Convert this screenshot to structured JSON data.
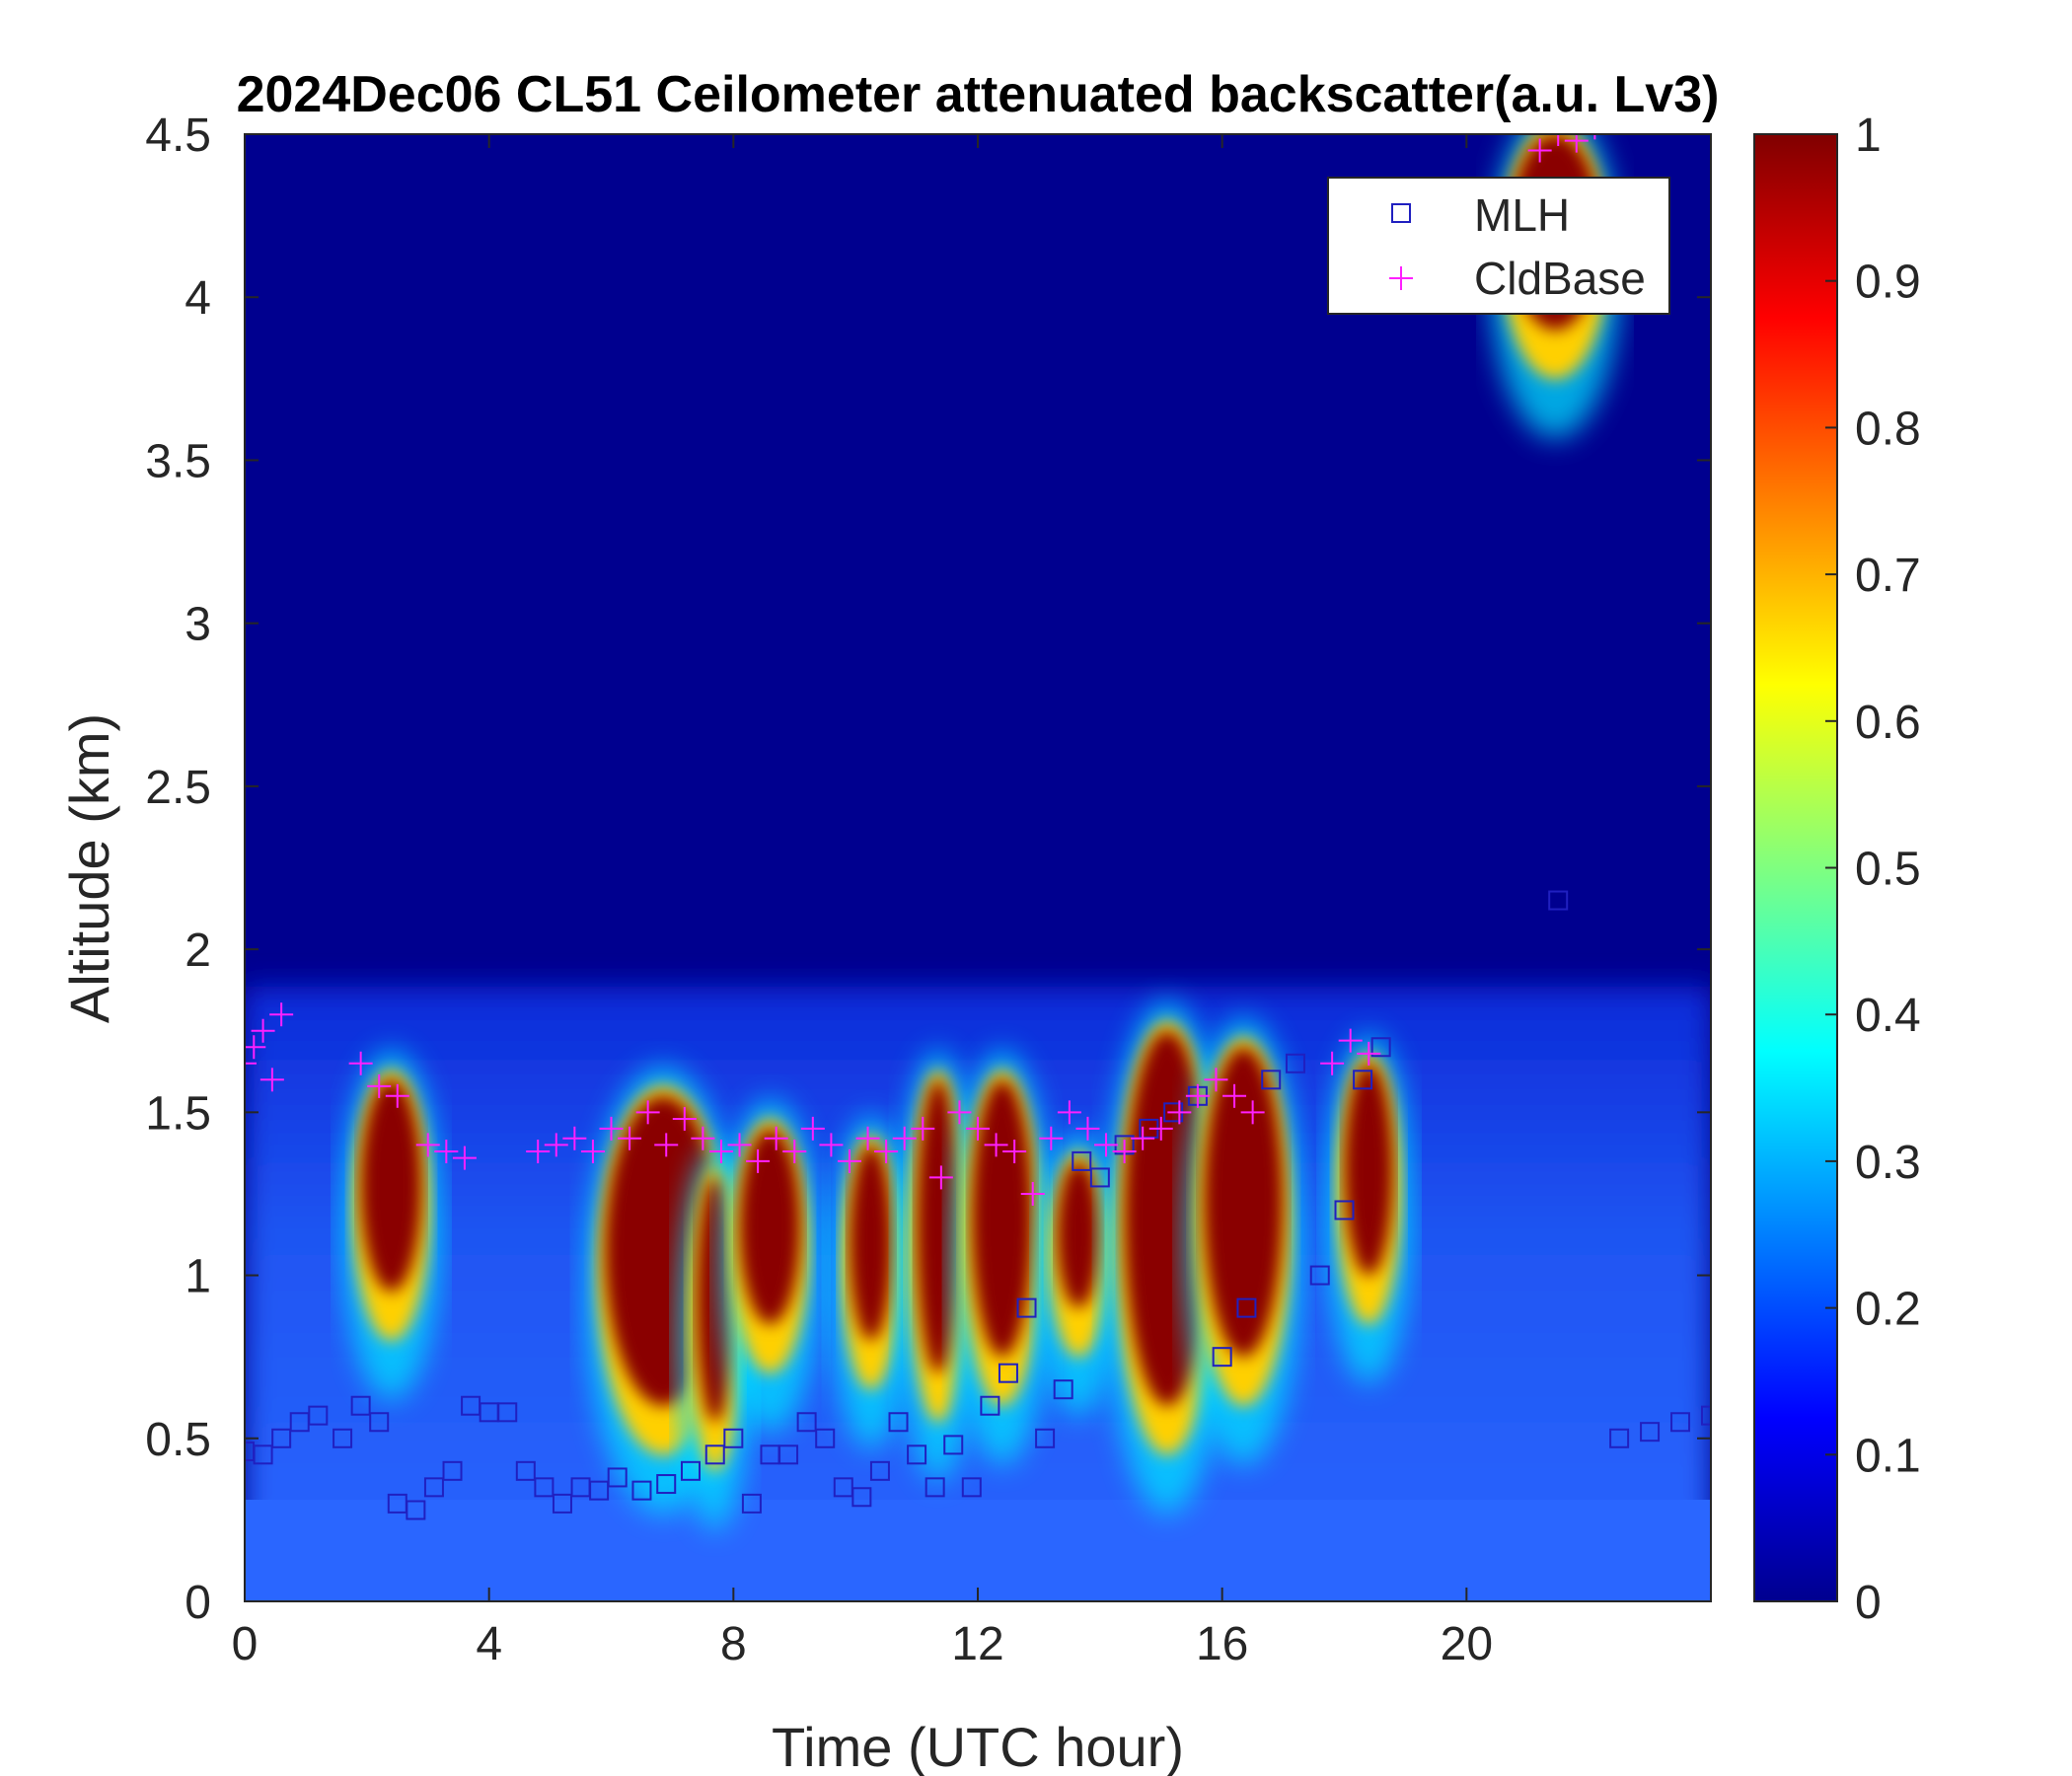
{
  "chart_data": {
    "type": "heatmap",
    "title": "2024Dec06 CL51 Ceilometer attenuated backscatter(a.u. Lv3)",
    "xlabel": "Time (UTC hour)",
    "ylabel": "Altitude (km)",
    "xlim": [
      0,
      24
    ],
    "ylim": [
      0,
      4.5
    ],
    "x_ticks": [
      0,
      4,
      8,
      12,
      16,
      20
    ],
    "x_tick_labels": [
      "0",
      "4",
      "8",
      "12",
      "16",
      "20"
    ],
    "y_ticks": [
      0,
      0.5,
      1,
      1.5,
      2,
      2.5,
      3,
      3.5,
      4,
      4.5
    ],
    "y_tick_labels": [
      "0",
      "0.5",
      "1",
      "1.5",
      "2",
      "2.5",
      "3",
      "3.5",
      "4",
      "4.5"
    ],
    "colorbar": {
      "colormap": "jet",
      "range": [
        0,
        1
      ],
      "ticks": [
        0,
        0.1,
        0.2,
        0.3,
        0.4,
        0.5,
        0.6,
        0.7,
        0.8,
        0.9,
        1
      ],
      "tick_labels": [
        "0",
        "0.1",
        "0.2",
        "0.3",
        "0.4",
        "0.5",
        "0.6",
        "0.7",
        "0.8",
        "0.9",
        "1"
      ]
    },
    "legend": {
      "placement": "top-right",
      "entries": [
        {
          "label": "MLH",
          "marker": "square",
          "color": "#2020c0"
        },
        {
          "label": "CldBase",
          "marker": "plus",
          "color": "#ff20ff"
        }
      ]
    },
    "series": [
      {
        "name": "MLH",
        "marker": "square",
        "color": "#2020c0",
        "x": [
          0.0,
          0.3,
          0.6,
          0.9,
          1.2,
          1.6,
          1.9,
          2.2,
          2.5,
          2.8,
          3.1,
          3.4,
          3.7,
          4.0,
          4.3,
          4.6,
          4.9,
          5.2,
          5.5,
          5.8,
          6.1,
          6.5,
          6.9,
          7.3,
          7.7,
          8.0,
          8.3,
          8.6,
          8.9,
          9.2,
          9.5,
          9.8,
          10.1,
          10.4,
          10.7,
          11.0,
          11.3,
          11.6,
          11.9,
          12.2,
          12.5,
          12.8,
          13.1,
          13.4,
          13.7,
          14.0,
          14.4,
          14.8,
          15.2,
          15.6,
          16.0,
          16.4,
          16.8,
          17.2,
          17.6,
          18.0,
          18.3,
          18.6,
          21.5,
          22.5,
          23.0,
          23.5,
          24.0
        ],
        "y": [
          0.46,
          0.45,
          0.5,
          0.55,
          0.57,
          0.5,
          0.6,
          0.55,
          0.3,
          0.28,
          0.35,
          0.4,
          0.6,
          0.58,
          0.58,
          0.4,
          0.35,
          0.3,
          0.35,
          0.34,
          0.38,
          0.34,
          0.36,
          0.4,
          0.45,
          0.5,
          0.3,
          0.45,
          0.45,
          0.55,
          0.5,
          0.35,
          0.32,
          0.4,
          0.55,
          0.45,
          0.35,
          0.48,
          0.35,
          0.6,
          0.7,
          0.9,
          0.5,
          0.65,
          1.35,
          1.3,
          1.4,
          1.45,
          1.5,
          1.55,
          0.75,
          0.9,
          1.6,
          1.65,
          1.0,
          1.2,
          1.6,
          1.7,
          2.15,
          0.5,
          0.52,
          0.55,
          0.57
        ]
      },
      {
        "name": "CldBase",
        "marker": "plus",
        "color": "#ff20ff",
        "x": [
          0.0,
          0.15,
          0.3,
          0.45,
          0.6,
          1.9,
          2.2,
          2.5,
          3.0,
          3.3,
          3.6,
          4.8,
          5.1,
          5.4,
          5.7,
          6.0,
          6.3,
          6.6,
          6.9,
          7.2,
          7.5,
          7.8,
          8.1,
          8.4,
          8.7,
          9.0,
          9.3,
          9.6,
          9.9,
          10.2,
          10.5,
          10.8,
          11.1,
          11.4,
          11.7,
          12.0,
          12.3,
          12.6,
          12.9,
          13.2,
          13.5,
          13.8,
          14.1,
          14.4,
          14.7,
          15.0,
          15.3,
          15.6,
          15.9,
          16.2,
          16.5,
          17.8,
          18.1,
          18.4,
          21.2,
          21.5,
          21.8,
          22.1
        ],
        "y": [
          1.65,
          1.7,
          1.75,
          1.6,
          1.8,
          1.65,
          1.58,
          1.55,
          1.4,
          1.38,
          1.36,
          1.38,
          1.4,
          1.42,
          1.38,
          1.45,
          1.42,
          1.5,
          1.4,
          1.48,
          1.42,
          1.38,
          1.4,
          1.35,
          1.42,
          1.38,
          1.45,
          1.4,
          1.35,
          1.42,
          1.38,
          1.42,
          1.45,
          1.3,
          1.5,
          1.45,
          1.4,
          1.38,
          1.25,
          1.42,
          1.5,
          1.45,
          1.4,
          1.38,
          1.42,
          1.45,
          1.5,
          1.55,
          1.6,
          1.55,
          1.5,
          1.65,
          1.72,
          1.68,
          4.45,
          4.5,
          4.48,
          4.52
        ]
      }
    ]
  }
}
